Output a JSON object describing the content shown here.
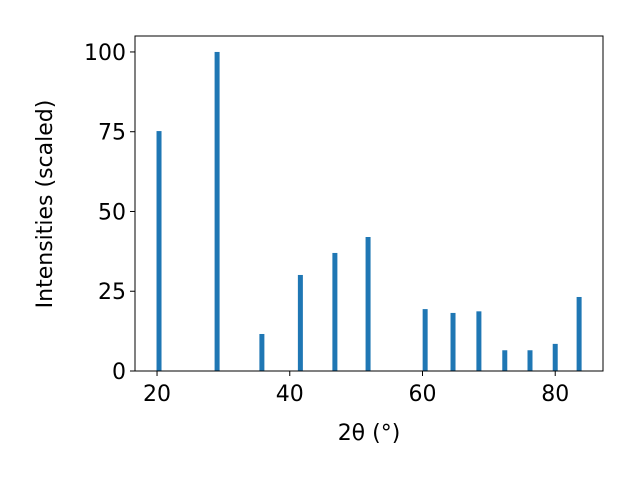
{
  "chart_data": {
    "type": "bar",
    "x": [
      20.3,
      29.05,
      35.8,
      41.6,
      46.8,
      51.8,
      60.4,
      64.6,
      68.5,
      72.4,
      76.2,
      80.0,
      83.6
    ],
    "values": [
      75.2,
      100,
      11.6,
      30.1,
      37,
      42,
      19.4,
      18.2,
      18.7,
      6.5,
      6.5,
      8.5,
      23.2
    ],
    "color": "#1f77b4",
    "xlabel": "2θ (°)",
    "ylabel": "Intensities (scaled)",
    "xlim": [
      16.68,
      87.2
    ],
    "xticks": [
      20,
      40,
      60,
      80
    ],
    "ylim": [
      0,
      105
    ],
    "yticks": [
      0,
      25,
      50,
      75,
      100
    ],
    "grid": false
  }
}
